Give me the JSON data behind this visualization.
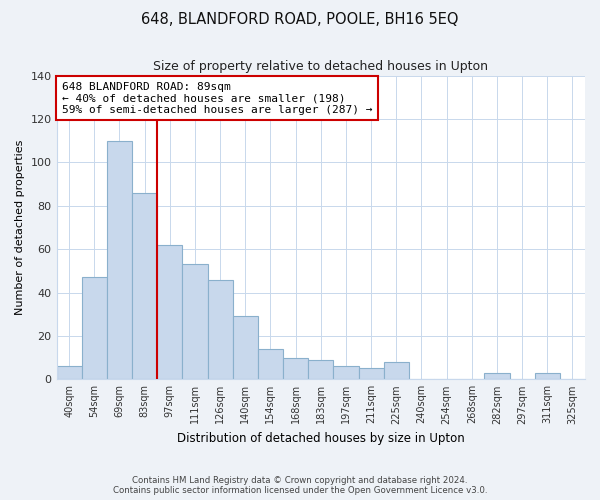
{
  "title": "648, BLANDFORD ROAD, POOLE, BH16 5EQ",
  "subtitle": "Size of property relative to detached houses in Upton",
  "xlabel": "Distribution of detached houses by size in Upton",
  "ylabel": "Number of detached properties",
  "bar_labels": [
    "40sqm",
    "54sqm",
    "69sqm",
    "83sqm",
    "97sqm",
    "111sqm",
    "126sqm",
    "140sqm",
    "154sqm",
    "168sqm",
    "183sqm",
    "197sqm",
    "211sqm",
    "225sqm",
    "240sqm",
    "254sqm",
    "268sqm",
    "282sqm",
    "297sqm",
    "311sqm",
    "325sqm"
  ],
  "bar_values": [
    6,
    47,
    110,
    86,
    62,
    53,
    46,
    29,
    14,
    10,
    9,
    6,
    5,
    8,
    0,
    0,
    0,
    3,
    0,
    3,
    0
  ],
  "bar_color": "#c8d8ec",
  "bar_edge_color": "#8ab0cc",
  "highlight_line_color": "#cc0000",
  "annotation_title": "648 BLANDFORD ROAD: 89sqm",
  "annotation_line1": "← 40% of detached houses are smaller (198)",
  "annotation_line2": "59% of semi-detached houses are larger (287) →",
  "annotation_box_color": "#ffffff",
  "annotation_box_edge": "#cc0000",
  "ylim": [
    0,
    140
  ],
  "yticks": [
    0,
    20,
    40,
    60,
    80,
    100,
    120,
    140
  ],
  "footer_line1": "Contains HM Land Registry data © Crown copyright and database right 2024.",
  "footer_line2": "Contains public sector information licensed under the Open Government Licence v3.0.",
  "background_color": "#eef2f7",
  "plot_background_color": "#ffffff",
  "grid_color": "#c8d8ec"
}
